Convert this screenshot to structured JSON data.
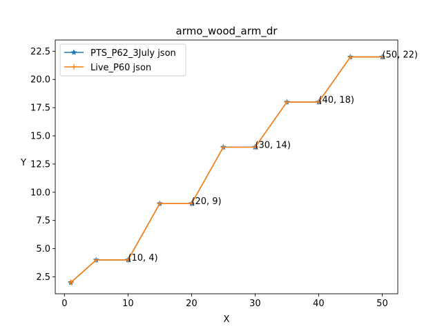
{
  "chart_data": {
    "type": "line",
    "title": "armo_wood_arm_dr",
    "xlabel": "X",
    "ylabel": "Y",
    "xlim": [
      -1.45,
      52.45
    ],
    "ylim": [
      1.0,
      23.5
    ],
    "xticks": [
      0,
      10,
      20,
      30,
      40,
      50
    ],
    "yticks": [
      2.5,
      5.0,
      7.5,
      10.0,
      12.5,
      15.0,
      17.5,
      20.0,
      22.5
    ],
    "ytick_labels": [
      "2.5",
      "5.0",
      "7.5",
      "10.0",
      "12.5",
      "15.0",
      "17.5",
      "20.0",
      "22.5"
    ],
    "grid": false,
    "legend_position": "top-left",
    "x": [
      1,
      5,
      10,
      15,
      20,
      25,
      30,
      35,
      40,
      45,
      50
    ],
    "series": [
      {
        "name": "PTS_P62_3July json",
        "color": "#1f77b4",
        "marker": "star",
        "values": [
          2,
          4,
          4,
          9,
          9,
          14,
          14,
          18,
          18,
          22,
          22
        ]
      },
      {
        "name": "Live_P60 json",
        "color": "#ff7f0e",
        "marker": "plus",
        "values": [
          2,
          4,
          4,
          9,
          9,
          14,
          14,
          18,
          18,
          22,
          22
        ]
      }
    ],
    "annotations": [
      {
        "text": "(10, 4)",
        "x": 10,
        "y": 4
      },
      {
        "text": "(20, 9)",
        "x": 20,
        "y": 9
      },
      {
        "text": "(30, 14)",
        "x": 30,
        "y": 14
      },
      {
        "text": "(40, 18)",
        "x": 40,
        "y": 18
      },
      {
        "text": "(50, 22)",
        "x": 50,
        "y": 22
      }
    ]
  }
}
